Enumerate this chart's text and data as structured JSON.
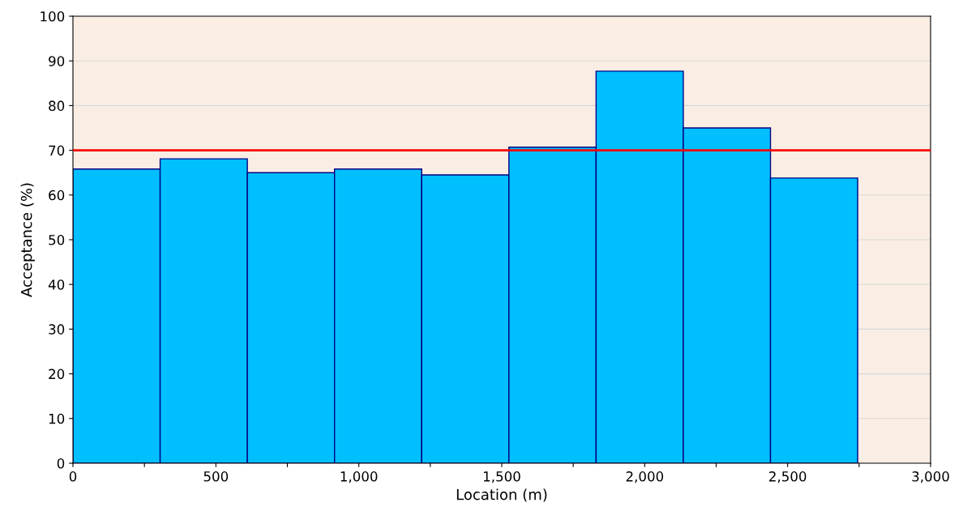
{
  "chart_data": {
    "type": "histogram",
    "xlabel": "Location (m)",
    "ylabel": "Acceptance (%)",
    "bins": [
      0,
      305,
      610,
      915,
      1220,
      1525,
      1830,
      2135,
      2440,
      2745
    ],
    "values": [
      65.8,
      68.1,
      65.0,
      65.8,
      64.5,
      70.7,
      87.7,
      75.0,
      63.8
    ],
    "color": "#00bfff",
    "xlim": [
      0,
      3000
    ],
    "xticks": [
      {
        "value": 0,
        "label": "0"
      },
      {
        "value": 250,
        "label": null
      },
      {
        "value": 500,
        "label": "500"
      },
      {
        "value": 750,
        "label": null
      },
      {
        "value": 1000,
        "label": "1,000"
      },
      {
        "value": 1250,
        "label": null
      },
      {
        "value": 1500,
        "label": "1,500"
      },
      {
        "value": 1750,
        "label": null
      },
      {
        "value": 2000,
        "label": "2,000"
      },
      {
        "value": 2250,
        "label": null
      },
      {
        "value": 2500,
        "label": "2,500"
      },
      {
        "value": 2750,
        "label": null
      },
      {
        "value": 3000,
        "label": "3,000"
      }
    ],
    "ylim": [
      0,
      100
    ],
    "yticks": [
      0,
      10,
      20,
      30,
      40,
      50,
      60,
      70,
      80,
      90,
      100
    ],
    "grid": "y",
    "ref_lines": [
      {
        "axis": "y",
        "value": 70,
        "color": "#ff0000"
      }
    ]
  }
}
